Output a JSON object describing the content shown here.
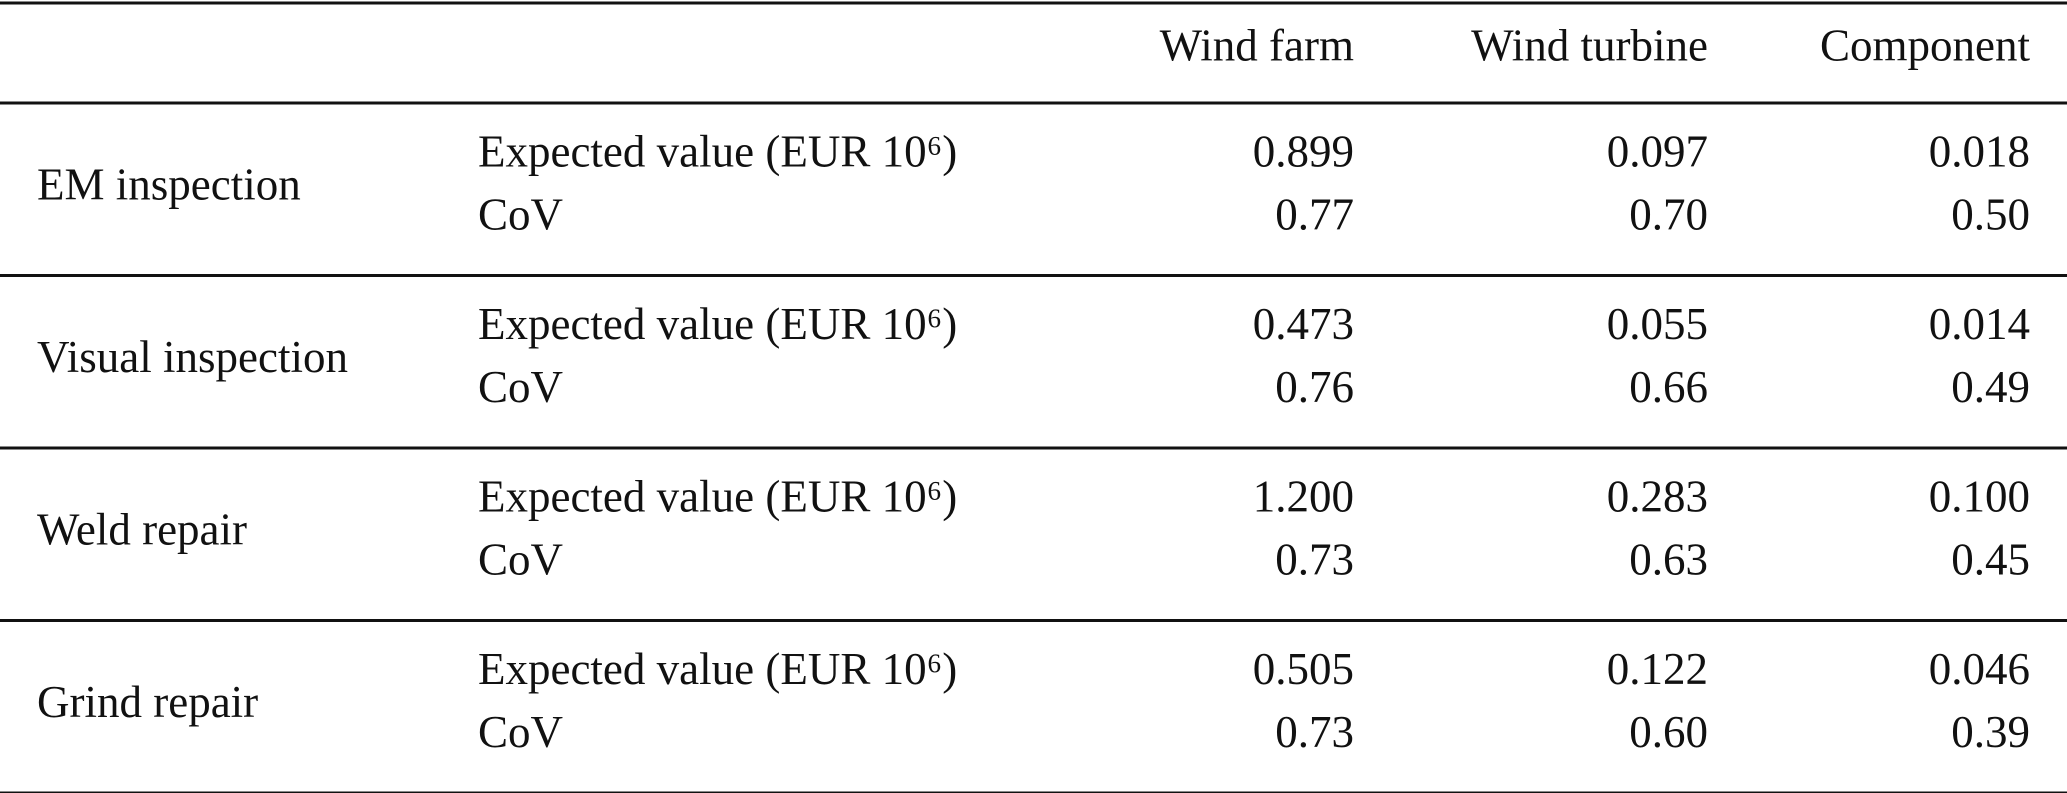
{
  "table": {
    "columns": [
      "Wind farm",
      "Wind turbine",
      "Component"
    ],
    "groups": [
      {
        "label": "EM inspection",
        "rows": [
          {
            "measure": "Expected value (EUR 10⁶)",
            "values": [
              "0.899",
              "0.097",
              "0.018"
            ]
          },
          {
            "measure": "CoV",
            "values": [
              "0.77",
              "0.70",
              "0.50"
            ]
          }
        ]
      },
      {
        "label": "Visual inspection",
        "rows": [
          {
            "measure": "Expected value (EUR 10⁶)",
            "values": [
              "0.473",
              "0.055",
              "0.014"
            ]
          },
          {
            "measure": "CoV",
            "values": [
              "0.76",
              "0.66",
              "0.49"
            ]
          }
        ]
      },
      {
        "label": "Weld repair",
        "rows": [
          {
            "measure": "Expected value (EUR 10⁶)",
            "values": [
              "1.200",
              "0.283",
              "0.100"
            ]
          },
          {
            "measure": "CoV",
            "values": [
              "0.73",
              "0.63",
              "0.45"
            ]
          }
        ]
      },
      {
        "label": "Grind repair",
        "rows": [
          {
            "measure": "Expected value (EUR 10⁶)",
            "values": [
              "0.505",
              "0.122",
              "0.046"
            ]
          },
          {
            "measure": "CoV",
            "values": [
              "0.73",
              "0.60",
              "0.39"
            ]
          }
        ]
      }
    ]
  }
}
